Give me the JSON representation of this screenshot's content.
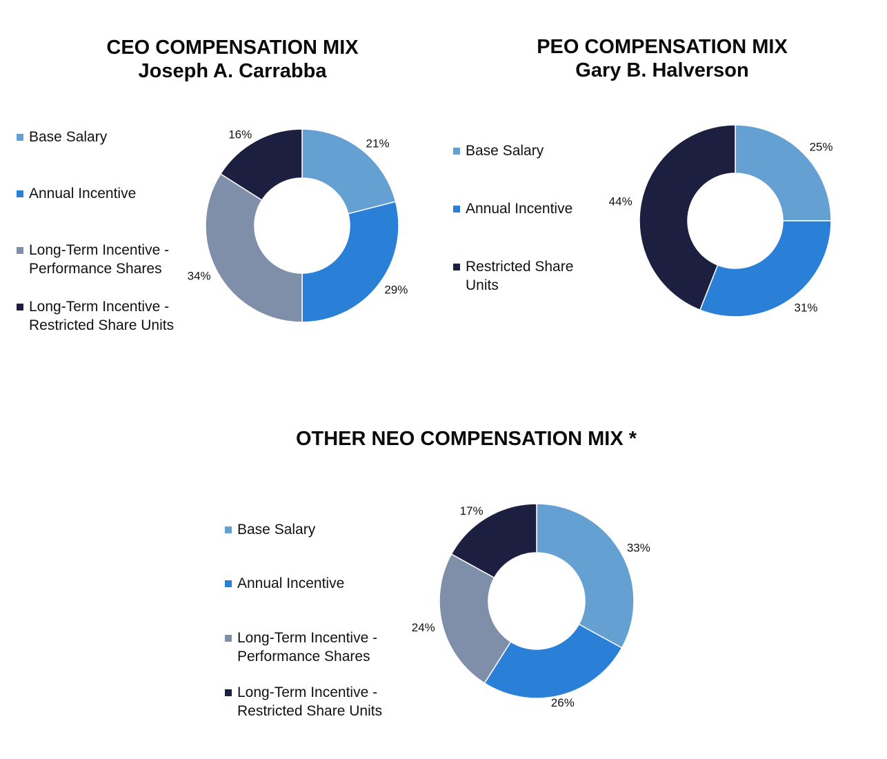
{
  "palette": {
    "base_salary": "#65A0D3",
    "annual_incentive": "#2A7FD6",
    "performance_shares": "#7F8FAA",
    "restricted_share_units": "#1C1F3F"
  },
  "chart_data": [
    {
      "type": "pie",
      "donut": true,
      "title_lines": [
        "CEO COMPENSATION MIX",
        "Joseph A. Carrabba"
      ],
      "legend_position": "left",
      "legend": [
        {
          "lines": [
            "Base Salary"
          ],
          "color": "#65A0D3"
        },
        {
          "lines": [
            "Annual Incentive"
          ],
          "color": "#2A7FD6"
        },
        {
          "lines": [
            "Long-Term Incentive -",
            "Performance Shares"
          ],
          "color": "#7F8FAA"
        },
        {
          "lines": [
            "Long-Term Incentive -",
            "Restricted Share Units"
          ],
          "color": "#1C1F3F"
        }
      ],
      "slices": [
        {
          "category": "Base Salary",
          "value": 21,
          "label": "21%",
          "color": "#65A0D3"
        },
        {
          "category": "Annual Incentive",
          "value": 29,
          "label": "29%",
          "color": "#2A7FD6"
        },
        {
          "category": "Long-Term Incentive - Performance Shares",
          "value": 34,
          "label": "34%",
          "color": "#7F8FAA"
        },
        {
          "category": "Long-Term Incentive - Restricted Share Units",
          "value": 16,
          "label": "16%",
          "color": "#1C1F3F"
        }
      ]
    },
    {
      "type": "pie",
      "donut": true,
      "title_lines": [
        "PEO COMPENSATION MIX",
        "Gary B. Halverson"
      ],
      "legend_position": "left",
      "legend": [
        {
          "lines": [
            "Base Salary"
          ],
          "color": "#65A0D3"
        },
        {
          "lines": [
            "Annual Incentive"
          ],
          "color": "#2A7FD6"
        },
        {
          "lines": [
            "Restricted Share",
            "Units"
          ],
          "color": "#1C1F3F"
        }
      ],
      "slices": [
        {
          "category": "Base Salary",
          "value": 25,
          "label": "25%",
          "color": "#65A0D3"
        },
        {
          "category": "Annual Incentive",
          "value": 31,
          "label": "31%",
          "color": "#2A7FD6"
        },
        {
          "category": "Restricted Share Units",
          "value": 44,
          "label": "44%",
          "color": "#1C1F3F"
        }
      ]
    },
    {
      "type": "pie",
      "donut": true,
      "title_lines": [
        "OTHER NEO COMPENSATION MIX *"
      ],
      "legend_position": "left",
      "legend": [
        {
          "lines": [
            "Base Salary"
          ],
          "color": "#65A0D3"
        },
        {
          "lines": [
            "Annual Incentive"
          ],
          "color": "#2A7FD6"
        },
        {
          "lines": [
            "Long-Term Incentive -",
            "Performance Shares"
          ],
          "color": "#7F8FAA"
        },
        {
          "lines": [
            "Long-Term Incentive -",
            "Restricted Share Units"
          ],
          "color": "#1C1F3F"
        }
      ],
      "slices": [
        {
          "category": "Base Salary",
          "value": 33,
          "label": "33%",
          "color": "#65A0D3"
        },
        {
          "category": "Annual Incentive",
          "value": 26,
          "label": "26%",
          "color": "#2A7FD6"
        },
        {
          "category": "Long-Term Incentive - Performance Shares",
          "value": 24,
          "label": "24%",
          "color": "#7F8FAA"
        },
        {
          "category": "Long-Term Incentive - Restricted Share Units",
          "value": 17,
          "label": "17%",
          "color": "#1C1F3F"
        }
      ]
    }
  ]
}
